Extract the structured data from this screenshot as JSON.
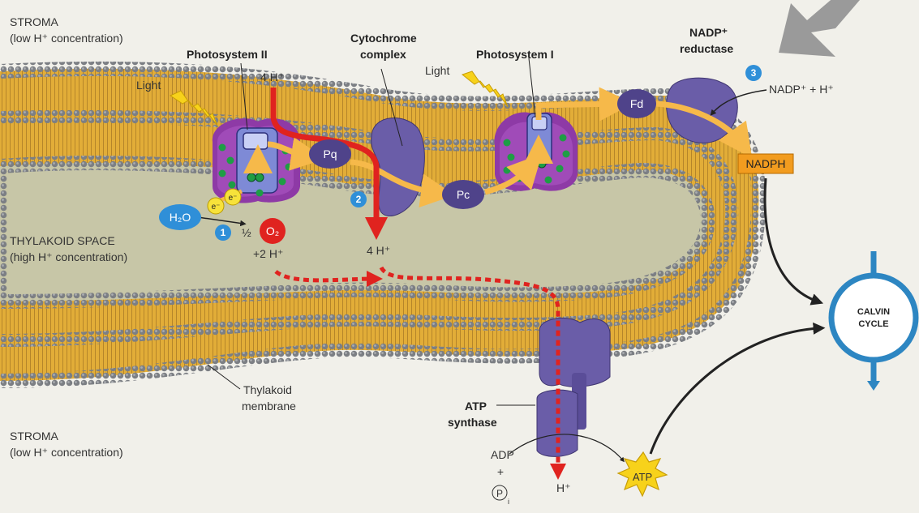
{
  "labels": {
    "stroma_top": "STROMA",
    "stroma_top_sub": "(low H⁺ concentration)",
    "stroma_bottom": "STROMA",
    "stroma_bottom_sub": "(low H⁺ concentration)",
    "thylakoid_space": "THYLAKOID SPACE",
    "thylakoid_space_sub": "(high H⁺ concentration)",
    "photosystem_ii": "Photosystem II",
    "cytochrome_line1": "Cytochrome",
    "cytochrome_line2": "complex",
    "photosystem_i": "Photosystem I",
    "nadp_reductase_line1": "NADP⁺",
    "nadp_reductase_line2": "reductase",
    "light_left": "Light",
    "light_right": "Light",
    "four_h_top": "4 H⁺",
    "four_h_mid": "4 H⁺",
    "two_h": "+2 H⁺",
    "half": "½",
    "o2": "O₂",
    "h2o": "H₂O",
    "electron": "e⁻",
    "pq": "Pq",
    "pc": "Pc",
    "fd": "Fd",
    "nadp_plus_h": "NADP⁺ + H⁺",
    "nadph": "NADPH",
    "step1": "1",
    "step2": "2",
    "step3": "3",
    "thylakoid_membrane_line1": "Thylakoid",
    "thylakoid_membrane_line2": "membrane",
    "atp_synthase_line1": "ATP",
    "atp_synthase_line2": "synthase",
    "adp": "ADP",
    "plus": "+",
    "pi": "P",
    "pi_sub": "i",
    "h_bottom": "H⁺",
    "atp": "ATP",
    "calvin_line1": "CALVIN",
    "calvin_line2": "CYCLE"
  },
  "colors": {
    "background": "#f1f0ea",
    "lumen": "#c7c6a7",
    "membrane_bead": "#7c7f84",
    "membrane_tail": "#e7b53f",
    "protein_purple": "#6a5da8",
    "photosystem_magenta": "#8e3aa6",
    "electron_arrow": "#f6b94a",
    "proton_arrow": "#e0231f",
    "step_badge": "#2f8fd8",
    "calvin_ring": "#2d86c2",
    "nadph_box": "#f29c1f",
    "o2_red": "#e0231f",
    "h2o_blue": "#2f8fd8",
    "atp_star": "#f7d21b"
  }
}
